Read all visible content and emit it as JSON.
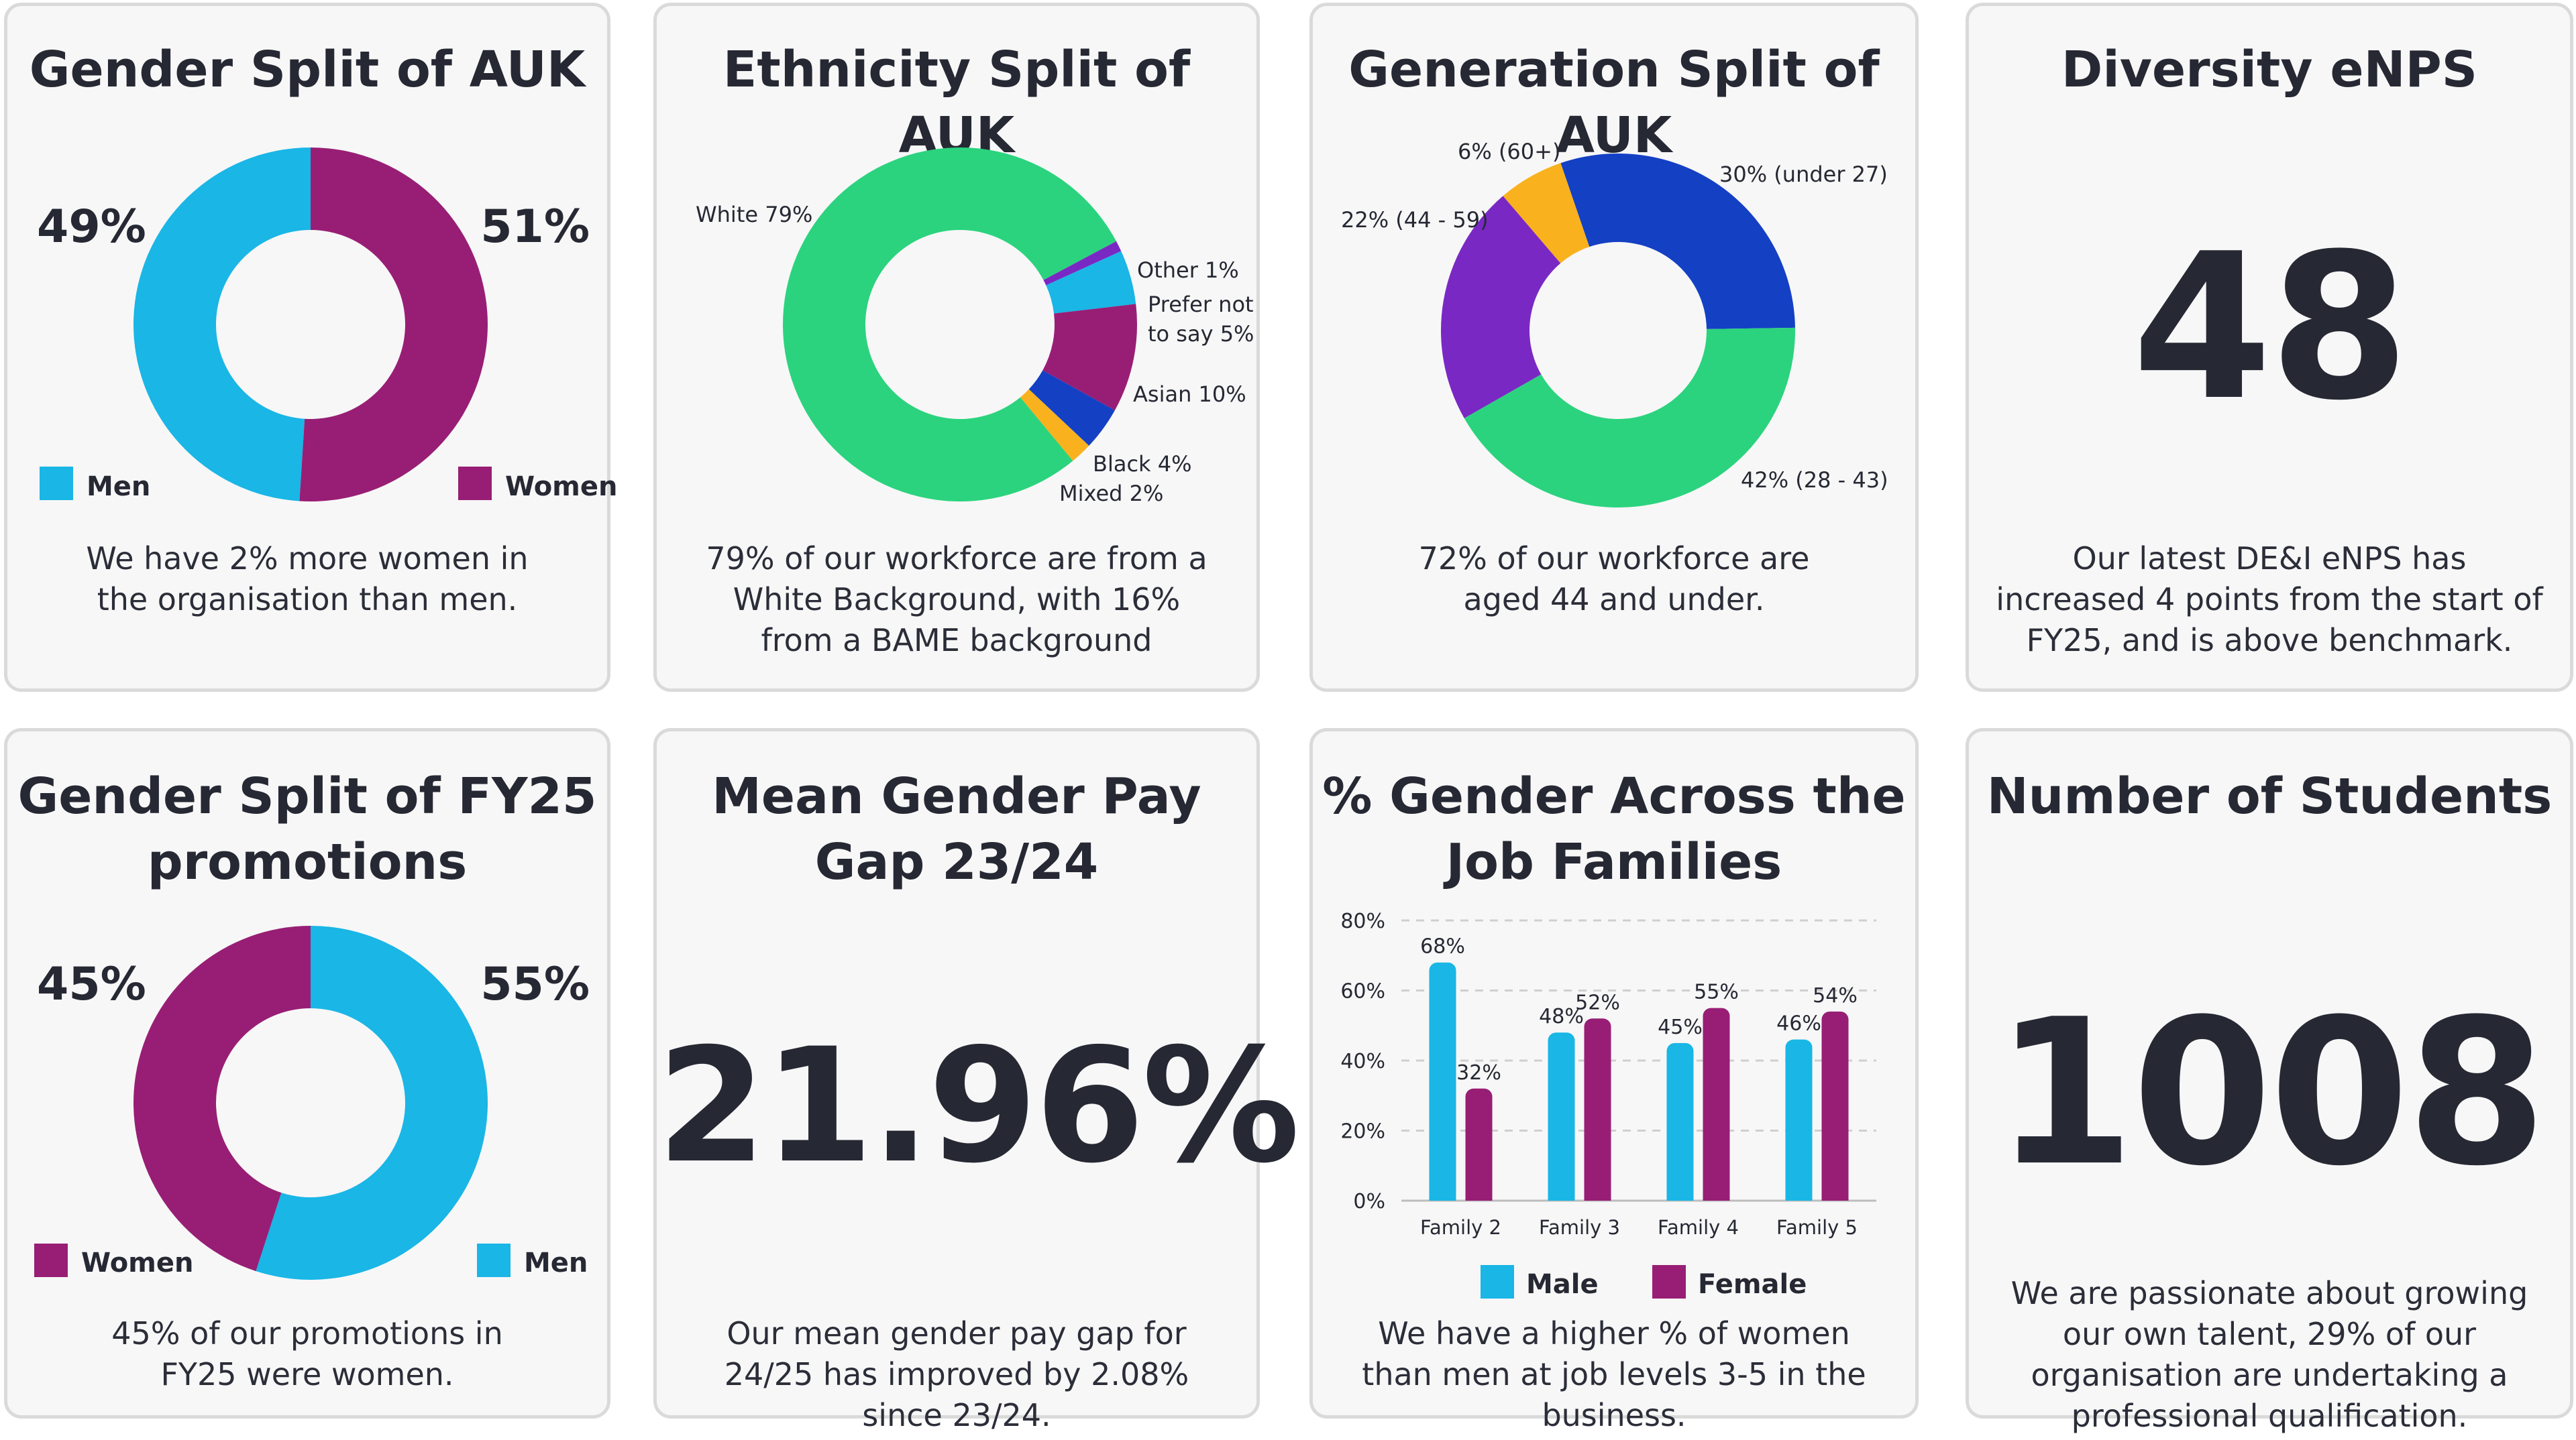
{
  "colors": {
    "men": "#19b6e6",
    "women": "#981e75",
    "white": "#2bd37e",
    "other": "#7a28c4",
    "prefer_not": "#19b6e6",
    "asian": "#981e75",
    "black": "#1440c4",
    "mixed": "#f9b11e",
    "gen_under27": "#1440c4",
    "gen_28_43": "#2bd37e",
    "gen_44_59": "#7a28c4",
    "gen_60plus": "#f9b11e",
    "male_bar": "#19b6e6",
    "female_bar": "#981e75",
    "text_dark": "#262833"
  },
  "cards": {
    "gender_auk": {
      "title": "Gender Split of AUK",
      "left_pct": "49%",
      "right_pct": "51%",
      "legend_men": "Men",
      "legend_women": "Women",
      "desc": "We have 2% more women in the organisation than men."
    },
    "ethnicity": {
      "title": "Ethnicity Split of AUK",
      "desc": "79% of our workforce are from a White Background, with 16% from a BAME background"
    },
    "generation": {
      "title": "Generation Split of AUK",
      "desc": "72% of our workforce are aged 44 and under."
    },
    "enps": {
      "title": "Diversity eNPS",
      "value": "48",
      "desc": "Our latest DE&I eNPS has increased 4 points from the start of FY25, and is above benchmark."
    },
    "promotions": {
      "title_line1": "Gender Split of FY25",
      "title_line2": "promotions",
      "left_pct": "45%",
      "right_pct": "55%",
      "legend_women": "Women",
      "legend_men": "Men",
      "desc": "45% of our promotions in FY25 were women."
    },
    "pay_gap": {
      "title_line1": "Mean Gender Pay",
      "title_line2": "Gap 23/24",
      "value": "21.96%",
      "desc": "Our mean gender pay gap for 24/25 has improved by 2.08% since 23/24."
    },
    "job_families": {
      "title_line1": "% Gender Across the",
      "title_line2": "Job Families",
      "desc": "We have a higher % of women than men at job levels 3-5 in the business."
    },
    "students": {
      "title": "Number of Students",
      "value": "1008",
      "desc": "We are passionate about growing our own talent, 29% of our organisation are undertaking a professional qualification."
    }
  },
  "chart_data": [
    {
      "type": "pie",
      "title": "Gender Split of AUK",
      "categories": [
        "Men",
        "Women"
      ],
      "values": [
        49,
        51
      ],
      "labels": [
        "49%",
        "51%"
      ]
    },
    {
      "type": "pie",
      "title": "Ethnicity Split of AUK",
      "categories": [
        "White",
        "Other",
        "Prefer not to say",
        "Asian",
        "Black",
        "Mixed"
      ],
      "values": [
        79,
        1,
        5,
        10,
        4,
        2
      ],
      "labels": [
        "White 79%",
        "Other 1%",
        "Prefer not to say 5%",
        "Asian 10%",
        "Black 4%",
        "Mixed 2%"
      ]
    },
    {
      "type": "pie",
      "title": "Generation Split of AUK",
      "categories": [
        "under 27",
        "28 - 43",
        "44 - 59",
        "60+"
      ],
      "values": [
        30,
        42,
        22,
        6
      ],
      "labels": [
        "30% (under 27)",
        "42% (28 - 43)",
        "22% (44 - 59)",
        "6% (60+)"
      ]
    },
    {
      "type": "pie",
      "title": "Gender Split of FY25 promotions",
      "categories": [
        "Men",
        "Women"
      ],
      "values": [
        55,
        45
      ],
      "labels": [
        "55%",
        "45%"
      ]
    },
    {
      "type": "bar",
      "title": "% Gender Across the Job Families",
      "categories": [
        "Family 2",
        "Family 3",
        "Family 4",
        "Family 5"
      ],
      "series": [
        {
          "name": "Male",
          "values": [
            68,
            48,
            45,
            46
          ],
          "labels": [
            "68%",
            "48%",
            "45%",
            "46%"
          ]
        },
        {
          "name": "Female",
          "values": [
            32,
            52,
            55,
            54
          ],
          "labels": [
            "32%",
            "52%",
            "55%",
            "54%"
          ]
        }
      ],
      "yticks": [
        "0%",
        "20%",
        "40%",
        "60%",
        "80%"
      ],
      "ylim": [
        0,
        80
      ],
      "grid": true,
      "legend": "bottom"
    }
  ]
}
